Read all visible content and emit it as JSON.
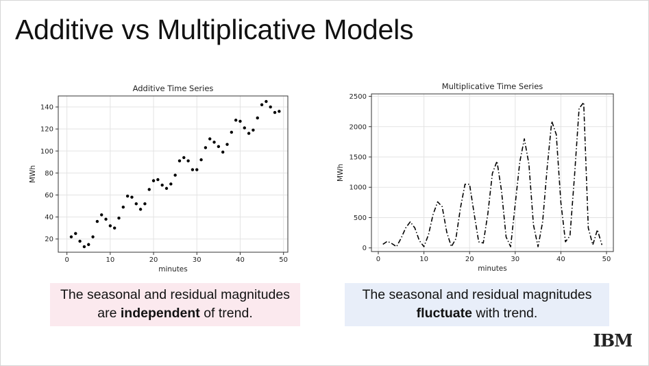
{
  "slide": {
    "title": "Additive vs Multiplicative Models",
    "logo_text": "IBM"
  },
  "captions": {
    "left": {
      "pre": "The seasonal and residual magnitudes are ",
      "bold": "independent",
      "post": " of trend.",
      "background": "#fbe9ee"
    },
    "right": {
      "pre": "The seasonal and residual magnitudes ",
      "bold": "fluctuate",
      "post": " with trend.",
      "background": "#e8eef9"
    }
  },
  "chart_data": [
    {
      "type": "scatter",
      "title": "Additive Time Series",
      "xlabel": "minutes",
      "ylabel": "MWh",
      "xlim": [
        -2,
        51
      ],
      "ylim": [
        8,
        150
      ],
      "xticks": [
        0,
        10,
        20,
        30,
        40,
        50
      ],
      "yticks": [
        20,
        40,
        60,
        80,
        100,
        120,
        140
      ],
      "grid": true,
      "marker_color": "#000000",
      "x": [
        1,
        2,
        3,
        4,
        5,
        6,
        7,
        8,
        9,
        10,
        11,
        12,
        13,
        14,
        15,
        16,
        17,
        18,
        19,
        20,
        21,
        22,
        23,
        24,
        25,
        26,
        27,
        28,
        29,
        30,
        31,
        32,
        33,
        34,
        35,
        36,
        37,
        38,
        39,
        40,
        41,
        42,
        43,
        44,
        45,
        46,
        47,
        48,
        49
      ],
      "y": [
        22,
        25,
        18,
        13,
        15,
        22,
        36,
        42,
        38,
        32,
        30,
        39,
        49,
        59,
        58,
        52,
        47,
        52,
        65,
        73,
        74,
        69,
        66,
        70,
        78,
        91,
        94,
        91,
        83,
        83,
        92,
        103,
        111,
        108,
        104,
        99,
        106,
        117,
        128,
        127,
        121,
        116,
        119,
        130,
        142,
        145,
        140,
        135,
        136
      ]
    },
    {
      "type": "line",
      "title": "Multiplicative Time Series",
      "xlabel": "minutes",
      "ylabel": "MWh",
      "xlim": [
        -1.5,
        51.5
      ],
      "ylim": [
        -60,
        2540
      ],
      "xticks": [
        0,
        10,
        20,
        30,
        40,
        50
      ],
      "yticks": [
        0,
        500,
        1000,
        1500,
        2000,
        2500
      ],
      "grid": true,
      "line_style": "dash-dot",
      "line_color": "#000000",
      "x": [
        1,
        2,
        3,
        4,
        5,
        6,
        7,
        8,
        9,
        10,
        11,
        12,
        13,
        14,
        15,
        16,
        17,
        18,
        19,
        20,
        21,
        22,
        23,
        24,
        25,
        26,
        27,
        28,
        29,
        30,
        31,
        32,
        33,
        34,
        35,
        36,
        37,
        38,
        39,
        40,
        41,
        42,
        43,
        44,
        45,
        46,
        47,
        48,
        49
      ],
      "y": [
        60,
        110,
        70,
        20,
        160,
        330,
        430,
        330,
        120,
        20,
        220,
        550,
        760,
        680,
        260,
        20,
        150,
        660,
        1050,
        1050,
        560,
        100,
        80,
        560,
        1230,
        1430,
        940,
        180,
        20,
        720,
        1420,
        1800,
        1380,
        380,
        20,
        430,
        1320,
        2090,
        1870,
        750,
        100,
        200,
        1200,
        2300,
        2400,
        330,
        50,
        300,
        50
      ]
    }
  ]
}
